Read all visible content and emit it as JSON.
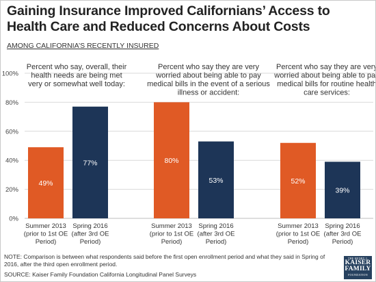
{
  "colors": {
    "before": "#e05a25",
    "after": "#1d3557",
    "grid": "#d9d9d9",
    "text": "#333333"
  },
  "header": {
    "title": "Gaining Insurance Improved Californians’ Access to Health Care and Reduced Concerns About Costs",
    "subtitle": "AMONG CALIFORNIA’S RECENTLY INSURED"
  },
  "footer": {
    "note": "NOTE: Comparison is between what respondents said before the first open enrollment period and what they said in Spring of 2016, after the third open enrollment period.",
    "source": "SOURCE: Kaiser Family Foundation  California Longitudinal Panel Surveys"
  },
  "logo": {
    "line1": "THE HENRY J.",
    "line2": "KAISER",
    "line3": "FAMILY",
    "line4": "FOUNDATION"
  },
  "chart_data": {
    "type": "bar",
    "ylim": [
      0,
      100
    ],
    "yticks": [
      "0%",
      "20%",
      "40%",
      "60%",
      "80%",
      "100%"
    ],
    "grid": true,
    "series_names": [
      "",
      ""
    ],
    "groups": [
      {
        "description": [
          "Percent who say, overall, their",
          "health needs are being met",
          "very or somewhat well today:"
        ],
        "bars": [
          {
            "value": 49,
            "label": "49%",
            "category": [
              "Summer 2013",
              "(prior to 1st OE",
              "Period)"
            ]
          },
          {
            "value": 77,
            "label": "77%",
            "category": [
              "Spring 2016",
              "(after 3rd OE",
              "Period)"
            ]
          }
        ]
      },
      {
        "description": [
          "Percent who say they are very",
          "worried about being able to pay",
          "medical bills in the event of a serious",
          "illness or accident:"
        ],
        "bars": [
          {
            "value": 80,
            "label": "80%",
            "category": [
              "Summer 2013",
              "(prior to 1st OE",
              "Period)"
            ]
          },
          {
            "value": 53,
            "label": "53%",
            "category": [
              "Spring 2016",
              "(after 3rd OE",
              "Period)"
            ]
          }
        ]
      },
      {
        "description": [
          "Percent who say they are very",
          "worried about being able to pay",
          "medical bills for routine health",
          "care services:"
        ],
        "bars": [
          {
            "value": 52,
            "label": "52%",
            "category": [
              "Summer 2013",
              "(prior to 1st OE",
              "Period)"
            ]
          },
          {
            "value": 39,
            "label": "39%",
            "category": [
              "Spring 2016",
              "(after 3rd OE",
              "Period)"
            ]
          }
        ]
      }
    ]
  }
}
